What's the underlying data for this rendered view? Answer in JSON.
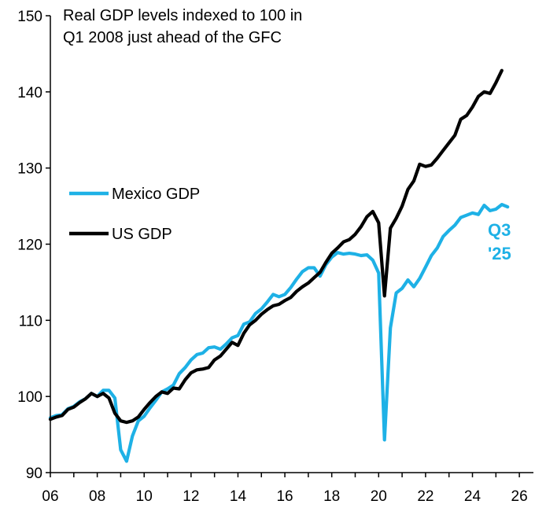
{
  "chart_data": {
    "type": "line",
    "title_lines": [
      "Real GDP levels indexed to 100 in",
      "Q1 2008 just ahead of the GFC"
    ],
    "xlabel": "",
    "ylabel": "",
    "xlim": [
      2006,
      2026.6
    ],
    "ylim": [
      90,
      150
    ],
    "x_ticks": [
      2006,
      2008,
      2010,
      2012,
      2014,
      2016,
      2018,
      2020,
      2022,
      2024,
      2026
    ],
    "x_tick_labels": [
      "06",
      "08",
      "10",
      "12",
      "14",
      "16",
      "18",
      "20",
      "22",
      "24",
      "26"
    ],
    "y_ticks": [
      90,
      100,
      110,
      120,
      130,
      140,
      150
    ],
    "y_tick_labels": [
      "90",
      "100",
      "110",
      "120",
      "130",
      "140",
      "150"
    ],
    "grid": false,
    "legend_position": "left-middle",
    "end_label": {
      "text_line1": "Q3",
      "text_line2": "'25",
      "color": "#1eb1e6"
    },
    "series": [
      {
        "name": "Mexico GDP",
        "color": "#1eb1e6",
        "points": [
          [
            2006.0,
            97.2
          ],
          [
            2006.25,
            97.5
          ],
          [
            2006.5,
            97.6
          ],
          [
            2006.75,
            98.4
          ],
          [
            2007.0,
            98.7
          ],
          [
            2007.25,
            99.3
          ],
          [
            2007.5,
            99.7
          ],
          [
            2007.75,
            100.4
          ],
          [
            2008.0,
            100.0
          ],
          [
            2008.25,
            100.8
          ],
          [
            2008.5,
            100.8
          ],
          [
            2008.75,
            99.8
          ],
          [
            2009.0,
            93.0
          ],
          [
            2009.25,
            91.5
          ],
          [
            2009.5,
            94.8
          ],
          [
            2009.75,
            96.8
          ],
          [
            2010.0,
            97.4
          ],
          [
            2010.25,
            98.5
          ],
          [
            2010.5,
            99.5
          ],
          [
            2010.75,
            100.6
          ],
          [
            2011.0,
            101.0
          ],
          [
            2011.25,
            101.5
          ],
          [
            2011.5,
            103.0
          ],
          [
            2011.75,
            103.8
          ],
          [
            2012.0,
            104.8
          ],
          [
            2012.25,
            105.5
          ],
          [
            2012.5,
            105.7
          ],
          [
            2012.75,
            106.4
          ],
          [
            2013.0,
            106.5
          ],
          [
            2013.25,
            106.2
          ],
          [
            2013.5,
            106.9
          ],
          [
            2013.75,
            107.7
          ],
          [
            2014.0,
            108.0
          ],
          [
            2014.25,
            109.5
          ],
          [
            2014.5,
            109.8
          ],
          [
            2014.75,
            110.9
          ],
          [
            2015.0,
            111.5
          ],
          [
            2015.25,
            112.4
          ],
          [
            2015.5,
            113.4
          ],
          [
            2015.75,
            113.1
          ],
          [
            2016.0,
            113.4
          ],
          [
            2016.25,
            114.3
          ],
          [
            2016.5,
            115.4
          ],
          [
            2016.75,
            116.4
          ],
          [
            2017.0,
            116.9
          ],
          [
            2017.25,
            116.9
          ],
          [
            2017.5,
            115.8
          ],
          [
            2017.75,
            117.3
          ],
          [
            2018.0,
            118.3
          ],
          [
            2018.25,
            118.9
          ],
          [
            2018.5,
            118.7
          ],
          [
            2018.75,
            118.8
          ],
          [
            2019.0,
            118.7
          ],
          [
            2019.25,
            118.5
          ],
          [
            2019.5,
            118.6
          ],
          [
            2019.75,
            117.9
          ],
          [
            2020.0,
            116.2
          ],
          [
            2020.25,
            94.3
          ],
          [
            2020.5,
            109.0
          ],
          [
            2020.75,
            113.6
          ],
          [
            2021.0,
            114.2
          ],
          [
            2021.25,
            115.3
          ],
          [
            2021.5,
            114.4
          ],
          [
            2021.75,
            115.5
          ],
          [
            2022.0,
            117.0
          ],
          [
            2022.25,
            118.5
          ],
          [
            2022.5,
            119.5
          ],
          [
            2022.75,
            121.0
          ],
          [
            2023.0,
            121.8
          ],
          [
            2023.25,
            122.5
          ],
          [
            2023.5,
            123.5
          ],
          [
            2023.75,
            123.8
          ],
          [
            2024.0,
            124.1
          ],
          [
            2024.25,
            123.9
          ],
          [
            2024.5,
            125.1
          ],
          [
            2024.75,
            124.4
          ],
          [
            2025.0,
            124.6
          ],
          [
            2025.25,
            125.2
          ],
          [
            2025.5,
            124.9
          ]
        ]
      },
      {
        "name": "US GDP",
        "color": "#000000",
        "points": [
          [
            2006.0,
            97.0
          ],
          [
            2006.25,
            97.3
          ],
          [
            2006.5,
            97.5
          ],
          [
            2006.75,
            98.3
          ],
          [
            2007.0,
            98.6
          ],
          [
            2007.25,
            99.2
          ],
          [
            2007.5,
            99.7
          ],
          [
            2007.75,
            100.4
          ],
          [
            2008.0,
            100.0
          ],
          [
            2008.25,
            100.4
          ],
          [
            2008.5,
            99.8
          ],
          [
            2008.75,
            97.8
          ],
          [
            2009.0,
            96.8
          ],
          [
            2009.25,
            96.6
          ],
          [
            2009.5,
            96.8
          ],
          [
            2009.75,
            97.3
          ],
          [
            2010.0,
            98.3
          ],
          [
            2010.25,
            99.2
          ],
          [
            2010.5,
            100.0
          ],
          [
            2010.75,
            100.6
          ],
          [
            2011.0,
            100.4
          ],
          [
            2011.25,
            101.1
          ],
          [
            2011.5,
            101.0
          ],
          [
            2011.75,
            102.2
          ],
          [
            2012.0,
            103.1
          ],
          [
            2012.25,
            103.5
          ],
          [
            2012.5,
            103.6
          ],
          [
            2012.75,
            103.8
          ],
          [
            2013.0,
            104.8
          ],
          [
            2013.25,
            105.3
          ],
          [
            2013.5,
            106.2
          ],
          [
            2013.75,
            107.1
          ],
          [
            2014.0,
            106.7
          ],
          [
            2014.25,
            108.3
          ],
          [
            2014.5,
            109.4
          ],
          [
            2014.75,
            110.0
          ],
          [
            2015.0,
            110.8
          ],
          [
            2015.25,
            111.4
          ],
          [
            2015.5,
            111.9
          ],
          [
            2015.75,
            112.1
          ],
          [
            2016.0,
            112.6
          ],
          [
            2016.25,
            113.0
          ],
          [
            2016.5,
            113.8
          ],
          [
            2016.75,
            114.4
          ],
          [
            2017.0,
            114.9
          ],
          [
            2017.25,
            115.6
          ],
          [
            2017.5,
            116.3
          ],
          [
            2017.75,
            117.6
          ],
          [
            2018.0,
            118.8
          ],
          [
            2018.25,
            119.5
          ],
          [
            2018.5,
            120.3
          ],
          [
            2018.75,
            120.6
          ],
          [
            2019.0,
            121.3
          ],
          [
            2019.25,
            122.3
          ],
          [
            2019.5,
            123.6
          ],
          [
            2019.75,
            124.3
          ],
          [
            2020.0,
            122.8
          ],
          [
            2020.25,
            113.2
          ],
          [
            2020.5,
            122.1
          ],
          [
            2020.75,
            123.4
          ],
          [
            2021.0,
            125.0
          ],
          [
            2021.25,
            127.2
          ],
          [
            2021.5,
            128.3
          ],
          [
            2021.75,
            130.5
          ],
          [
            2022.0,
            130.2
          ],
          [
            2022.25,
            130.4
          ],
          [
            2022.5,
            131.3
          ],
          [
            2022.75,
            132.3
          ],
          [
            2023.0,
            133.3
          ],
          [
            2023.25,
            134.3
          ],
          [
            2023.5,
            136.4
          ],
          [
            2023.75,
            136.9
          ],
          [
            2024.0,
            138.0
          ],
          [
            2024.25,
            139.4
          ],
          [
            2024.5,
            140.0
          ],
          [
            2024.75,
            139.8
          ],
          [
            2025.0,
            141.2
          ],
          [
            2025.25,
            142.8
          ]
        ]
      }
    ]
  }
}
